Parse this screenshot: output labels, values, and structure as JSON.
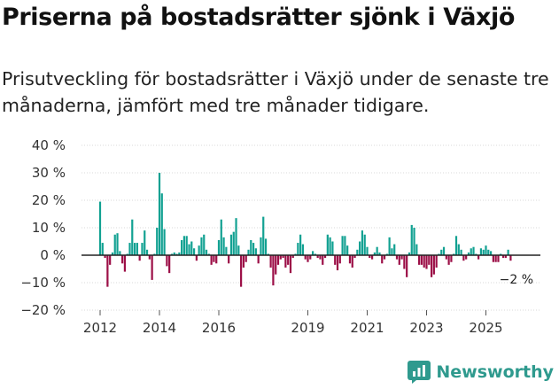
{
  "title": "Priserna på bostadsrätter sjönk i Växjö",
  "subtitle": "Prisutveckling för bostadsrätter i Växjö under de senaste tre månaderna, jämfört med tre månader tidigare.",
  "brand": {
    "name": "Newsworthy",
    "color": "#2f9a8e"
  },
  "colors": {
    "positive": "#12a192",
    "negative": "#9c0f47",
    "axis": "#222222"
  },
  "chart_data": {
    "type": "bar",
    "title": "Priserna på bostadsrätter sjönk i Växjö",
    "xlabel": "",
    "ylabel": "",
    "ylim": [
      -20,
      40
    ],
    "y_ticks": [
      40,
      30,
      20,
      10,
      0,
      -10,
      -20
    ],
    "y_tick_labels": [
      "40 %",
      "30 %",
      "20 %",
      "10 %",
      "0 %",
      "−10 %",
      "−20 %"
    ],
    "x_ticks": [
      2012,
      2014,
      2016,
      2019,
      2021,
      2023,
      2025
    ],
    "x_tick_labels": [
      "2012",
      "2014",
      "2016",
      "2019",
      "2021",
      "2023",
      "2025"
    ],
    "x_start": 2012.0,
    "x_end": 2026.0,
    "annotation": {
      "label": "−2 %",
      "value": -2
    },
    "series": [
      {
        "name": "Prisutveckling (%)",
        "x": [
          2012.0,
          2012.083,
          2012.167,
          2012.25,
          2012.333,
          2012.417,
          2012.5,
          2012.583,
          2012.667,
          2012.75,
          2012.833,
          2012.917,
          2013.0,
          2013.083,
          2013.167,
          2013.25,
          2013.333,
          2013.417,
          2013.5,
          2013.583,
          2013.667,
          2013.75,
          2013.833,
          2013.917,
          2014.0,
          2014.083,
          2014.167,
          2014.25,
          2014.333,
          2014.417,
          2014.5,
          2014.583,
          2014.667,
          2014.75,
          2014.833,
          2014.917,
          2015.0,
          2015.083,
          2015.167,
          2015.25,
          2015.333,
          2015.417,
          2015.5,
          2015.583,
          2015.667,
          2015.75,
          2015.833,
          2015.917,
          2016.0,
          2016.083,
          2016.167,
          2016.25,
          2016.333,
          2016.417,
          2016.5,
          2016.583,
          2016.667,
          2016.75,
          2016.833,
          2016.917,
          2017.0,
          2017.083,
          2017.167,
          2017.25,
          2017.333,
          2017.417,
          2017.5,
          2017.583,
          2017.667,
          2017.75,
          2017.833,
          2017.917,
          2018.0,
          2018.083,
          2018.167,
          2018.25,
          2018.333,
          2018.417,
          2018.5,
          2018.583,
          2018.667,
          2018.75,
          2018.833,
          2018.917,
          2019.0,
          2019.083,
          2019.167,
          2019.25,
          2019.333,
          2019.417,
          2019.5,
          2019.583,
          2019.667,
          2019.75,
          2019.833,
          2019.917,
          2020.0,
          2020.083,
          2020.167,
          2020.25,
          2020.333,
          2020.417,
          2020.5,
          2020.583,
          2020.667,
          2020.75,
          2020.833,
          2020.917,
          2021.0,
          2021.083,
          2021.167,
          2021.25,
          2021.333,
          2021.417,
          2021.5,
          2021.583,
          2021.667,
          2021.75,
          2021.833,
          2021.917,
          2022.0,
          2022.083,
          2022.167,
          2022.25,
          2022.333,
          2022.417,
          2022.5,
          2022.583,
          2022.667,
          2022.75,
          2022.833,
          2022.917,
          2023.0,
          2023.083,
          2023.167,
          2023.25,
          2023.333,
          2023.417,
          2023.5,
          2023.583,
          2023.667,
          2023.75,
          2023.833,
          2023.917,
          2024.0,
          2024.083,
          2024.167,
          2024.25,
          2024.333,
          2024.417,
          2024.5,
          2024.583,
          2024.667,
          2024.75,
          2024.833,
          2024.917,
          2025.0,
          2025.083,
          2025.167,
          2025.25,
          2025.333,
          2025.417,
          2025.5,
          2025.583,
          2025.667,
          2025.75,
          2025.833
        ],
        "values": [
          19.5,
          4.5,
          -1,
          -11.5,
          -3.5,
          1,
          7.5,
          8,
          1.5,
          -3,
          -6,
          0.5,
          4.5,
          13,
          4.5,
          4.5,
          -2,
          4.5,
          9,
          2,
          -1.5,
          -9,
          0.5,
          10,
          30,
          22.5,
          9.5,
          -4,
          -6.5,
          0.5,
          1,
          0.5,
          1,
          5.5,
          7,
          7,
          4,
          5,
          2.5,
          -2,
          3.5,
          6.5,
          7.5,
          2,
          0.5,
          -3.5,
          -2.5,
          -3,
          5.5,
          13,
          6.5,
          3,
          -3,
          7.5,
          8.5,
          13.5,
          3.5,
          -11.5,
          -4.5,
          -2.5,
          2,
          5.5,
          4.5,
          2.5,
          -3,
          6.5,
          14,
          6,
          0.5,
          -4.5,
          -11,
          -7,
          -3.5,
          -1.5,
          -1,
          -4.5,
          -3.5,
          -6.5,
          -1,
          0.5,
          4.5,
          7.5,
          4,
          -1.5,
          -2.5,
          -1.5,
          1.5,
          0.5,
          -1,
          -1.5,
          -3.5,
          -1,
          7.5,
          6.5,
          5,
          -3.5,
          -5.5,
          -3,
          7,
          7,
          3.5,
          -3,
          -4.5,
          -1,
          2,
          5,
          9,
          7.5,
          3,
          -1,
          -1.5,
          1,
          3,
          1,
          -3,
          -1.5,
          0.5,
          6.5,
          2.5,
          4,
          -1.5,
          -3.5,
          -1.5,
          -5,
          -8,
          1,
          11,
          10,
          4,
          -3.5,
          -3.5,
          -4.5,
          -5,
          -3.5,
          -8,
          -7,
          -4.5,
          0.5,
          2,
          3,
          -1.5,
          -3.5,
          -2.5,
          0.5,
          7,
          4,
          2,
          -2,
          -1.5,
          1,
          2.5,
          3,
          0.5,
          -1.5,
          2.5,
          2,
          3.5,
          2,
          1.5,
          -2.5,
          -2.5,
          -2.5,
          0.5,
          -1,
          -1,
          2,
          -2
        ]
      }
    ]
  }
}
